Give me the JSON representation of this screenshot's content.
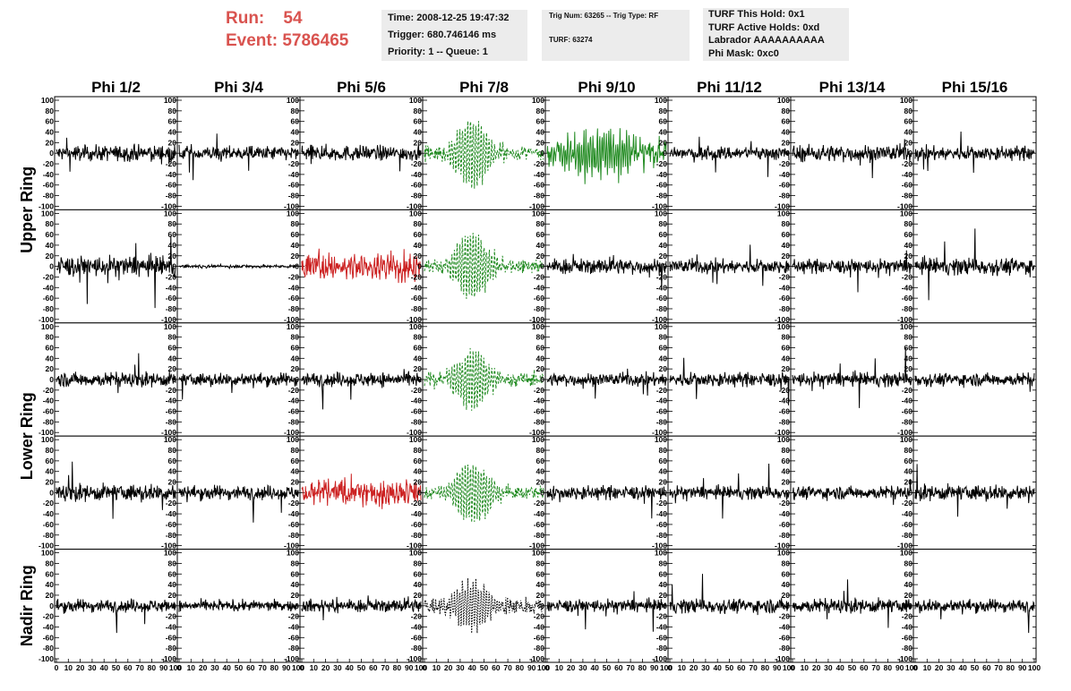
{
  "header": {
    "run_label": "Run:",
    "run_value": "54",
    "event_label": "Event:",
    "event_value": "5786465"
  },
  "info_box_1": {
    "time": "Time: 2008-12-25 19:47:32",
    "trigger": "Trigger: 680.746146 ms",
    "priority": "Priority: 1 -- Queue: 1"
  },
  "info_box_2": {
    "trig": "Trig Num: 63265 -- Trig Type: RF",
    "turf": "TURF: 63274"
  },
  "info_box_3": {
    "hold": "TURF This Hold: 0x1",
    "active": "TURF Active Holds: 0xd",
    "labrador": "Labrador AAAAAAAAAA",
    "phimask": "Phi Mask: 0xc0"
  },
  "colors": {
    "normal": "#000000",
    "triggered_phi": "#228B22",
    "triggered_l1": "#cc2222",
    "info_bg": "#ececec",
    "header_red": "#d9534f"
  },
  "chart_data": {
    "type": "line",
    "columns": [
      "Phi 1/2",
      "Phi 3/4",
      "Phi 5/6",
      "Phi 7/8",
      "Phi 9/10",
      "Phi 11/12",
      "Phi 13/14",
      "Phi 15/16"
    ],
    "ring_labels": [
      "Upper Ring",
      "Lower Ring",
      "Nadir Ring"
    ],
    "rows": 5,
    "ring_of_row": [
      0,
      0,
      1,
      1,
      2
    ],
    "y_range": [
      -100,
      100
    ],
    "y_ticks": [
      "100",
      "80",
      "60",
      "40",
      "20",
      "0",
      "-20",
      "-40",
      "-60",
      "-80",
      "-100"
    ],
    "x_range": [
      0,
      100
    ],
    "x_ticks": [
      "0",
      "10",
      "20",
      "30",
      "40",
      "50",
      "60",
      "70",
      "80",
      "90",
      "100"
    ],
    "waveform_style": [
      [
        "noise",
        "noise",
        "noise",
        "pulse-dashed",
        "dense",
        "noise",
        "noise",
        "noise"
      ],
      [
        "noise",
        "flat",
        "dense",
        "pulse-dashed",
        "noise",
        "noise",
        "noise",
        "noise"
      ],
      [
        "noise",
        "noise",
        "noise",
        "pulse-dashed",
        "noise",
        "noise",
        "noise",
        "noise"
      ],
      [
        "noise",
        "noise",
        "dense",
        "pulse-dashed",
        "noise",
        "noise",
        "noise",
        "noise"
      ],
      [
        "noise",
        "noise",
        "noise",
        "pulse-dotted",
        "noise",
        "noise",
        "noise",
        "noise"
      ]
    ],
    "waveform_color": [
      [
        "normal",
        "normal",
        "normal",
        "triggered_phi",
        "triggered_phi",
        "normal",
        "normal",
        "normal"
      ],
      [
        "normal",
        "normal",
        "triggered_l1",
        "triggered_phi",
        "normal",
        "normal",
        "normal",
        "normal"
      ],
      [
        "normal",
        "normal",
        "normal",
        "triggered_phi",
        "normal",
        "normal",
        "normal",
        "normal"
      ],
      [
        "normal",
        "normal",
        "triggered_l1",
        "triggered_phi",
        "normal",
        "normal",
        "normal",
        "normal"
      ],
      [
        "normal",
        "normal",
        "normal",
        "normal",
        "normal",
        "normal",
        "normal",
        "normal"
      ]
    ],
    "noise_amplitude": [
      [
        12,
        11,
        12,
        20,
        14,
        11,
        13,
        11
      ],
      [
        16,
        1.5,
        14,
        18,
        12,
        11,
        11,
        13
      ],
      [
        11,
        10,
        11,
        20,
        10,
        11,
        11,
        10
      ],
      [
        13,
        11,
        14,
        18,
        11,
        10,
        10,
        12
      ],
      [
        10,
        8,
        10,
        22,
        10,
        11,
        11,
        10
      ]
    ],
    "pulse_peak": [
      [
        0,
        0,
        0,
        65,
        45,
        0,
        0,
        0
      ],
      [
        0,
        0,
        0,
        62,
        0,
        0,
        0,
        0
      ],
      [
        0,
        0,
        0,
        55,
        0,
        0,
        0,
        0
      ],
      [
        0,
        0,
        0,
        55,
        0,
        0,
        0,
        0
      ],
      [
        0,
        0,
        0,
        45,
        0,
        0,
        0,
        0
      ]
    ]
  }
}
